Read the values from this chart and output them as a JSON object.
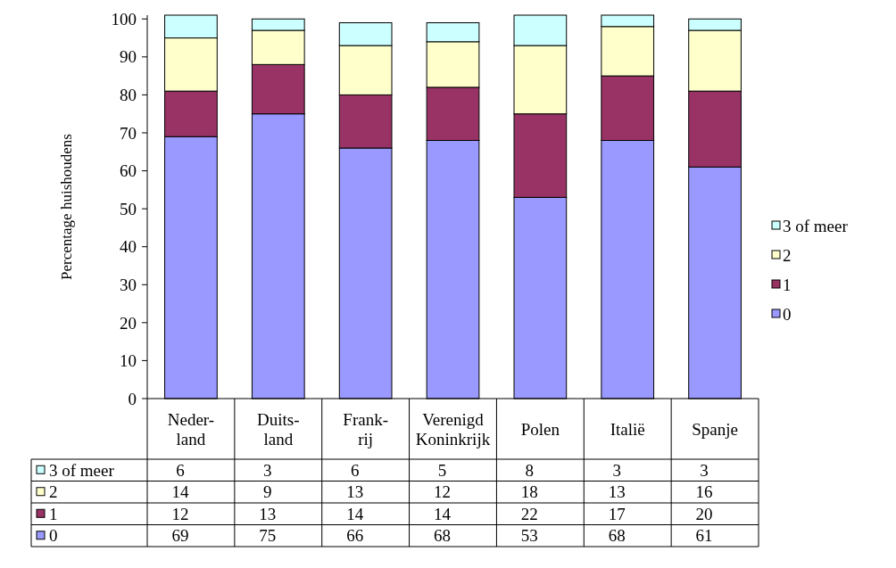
{
  "chart_data": {
    "type": "bar",
    "stacked": true,
    "ylabel": "Percentage huishoudens",
    "categories": [
      "Neder-\nland",
      "Duits-\nland",
      "Frank-\nrij",
      "Verenigd\nKoninkrijk",
      "Polen",
      "Italië",
      "Spanje"
    ],
    "series": [
      {
        "name": "0",
        "color": "#9999ff",
        "values": [
          69,
          75,
          66,
          68,
          53,
          68,
          61
        ]
      },
      {
        "name": "1",
        "color": "#993366",
        "values": [
          12,
          13,
          14,
          14,
          22,
          17,
          20
        ]
      },
      {
        "name": "2",
        "color": "#ffffcc",
        "values": [
          14,
          9,
          13,
          12,
          18,
          13,
          16
        ]
      },
      {
        "name": "3 of meer",
        "color": "#ccffff",
        "values": [
          6,
          3,
          6,
          5,
          8,
          3,
          3
        ]
      }
    ],
    "ylim": [
      0,
      101
    ],
    "yticks": [
      0,
      10,
      20,
      30,
      40,
      50,
      60,
      70,
      80,
      90,
      100
    ],
    "legend": "right",
    "data_labels": true,
    "grid": false
  }
}
